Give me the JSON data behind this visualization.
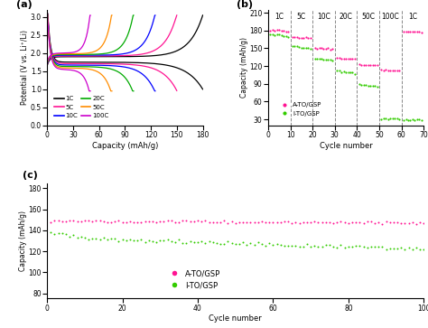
{
  "panel_a": {
    "xlabel": "Capacity (mAh/g)",
    "ylabel": "Potential (V vs. Li⁺/Li)",
    "xlim": [
      0,
      180
    ],
    "ylim": [
      0.0,
      3.2
    ],
    "xticks": [
      0,
      30,
      60,
      90,
      120,
      150,
      180
    ],
    "yticks": [
      0.0,
      0.5,
      1.0,
      1.5,
      2.0,
      2.5,
      3.0
    ],
    "curves": [
      {
        "label": "1C",
        "color": "#000000",
        "max_cap": 180
      },
      {
        "label": "5C",
        "color": "#ff1493",
        "max_cap": 150
      },
      {
        "label": "10C",
        "color": "#0000ff",
        "max_cap": 125
      },
      {
        "label": "20C",
        "color": "#00aa00",
        "max_cap": 100
      },
      {
        "label": "50C",
        "color": "#ff8c00",
        "max_cap": 75
      },
      {
        "label": "100C",
        "color": "#cc00cc",
        "max_cap": 50
      }
    ]
  },
  "panel_b": {
    "xlabel": "Cycle number",
    "ylabel": "Capacity (mAh/g)",
    "xlim": [
      0,
      70
    ],
    "ylim": [
      20,
      215
    ],
    "xticks": [
      0,
      10,
      20,
      30,
      40,
      50,
      60,
      70
    ],
    "yticks": [
      30,
      60,
      90,
      120,
      150,
      180,
      210
    ],
    "rate_labels": [
      "1C",
      "5C",
      "10C",
      "20C",
      "50C",
      "100C",
      "1C"
    ],
    "rate_positions": [
      5,
      15,
      25,
      35,
      45,
      55,
      65
    ],
    "vlines": [
      10,
      20,
      30,
      40,
      50,
      60
    ],
    "ato_color": "#ff1493",
    "ito_color": "#33cc00",
    "ato_segments": [
      {
        "x_range": [
          1,
          9
        ],
        "y_center": 181,
        "y_slope": -0.3
      },
      {
        "x_range": [
          11,
          19
        ],
        "y_center": 169,
        "y_slope": -0.2
      },
      {
        "x_range": [
          21,
          29
        ],
        "y_center": 150,
        "y_slope": -0.1
      },
      {
        "x_range": [
          31,
          39
        ],
        "y_center": 133,
        "y_slope": -0.1
      },
      {
        "x_range": [
          41,
          49
        ],
        "y_center": 122,
        "y_slope": -0.1
      },
      {
        "x_range": [
          51,
          59
        ],
        "y_center": 113,
        "y_slope": -0.1
      },
      {
        "x_range": [
          61,
          69
        ],
        "y_center": 179,
        "y_slope": -0.2
      }
    ],
    "ito_segments": [
      {
        "x_range": [
          1,
          9
        ],
        "y_center": 174,
        "y_slope": -0.5
      },
      {
        "x_range": [
          11,
          19
        ],
        "y_center": 154,
        "y_slope": -0.5
      },
      {
        "x_range": [
          21,
          29
        ],
        "y_center": 133,
        "y_slope": -0.5
      },
      {
        "x_range": [
          31,
          39
        ],
        "y_center": 112,
        "y_slope": -0.5
      },
      {
        "x_range": [
          41,
          49
        ],
        "y_center": 89,
        "y_slope": -0.5
      },
      {
        "x_range": [
          51,
          59
        ],
        "y_center": 32,
        "y_slope": -0.2
      },
      {
        "x_range": [
          61,
          69
        ],
        "y_center": 30,
        "y_slope": -0.1
      }
    ]
  },
  "panel_c": {
    "xlabel": "Cycle number",
    "ylabel": "Capacity (mAh/g)",
    "xlim": [
      0,
      100
    ],
    "ylim": [
      75,
      185
    ],
    "xticks": [
      0,
      20,
      40,
      60,
      80,
      100
    ],
    "yticks": [
      80,
      100,
      120,
      140,
      160,
      180
    ],
    "ato_color": "#ff1493",
    "ito_color": "#33cc00",
    "n_cycles": 100
  },
  "bg": "#ffffff"
}
